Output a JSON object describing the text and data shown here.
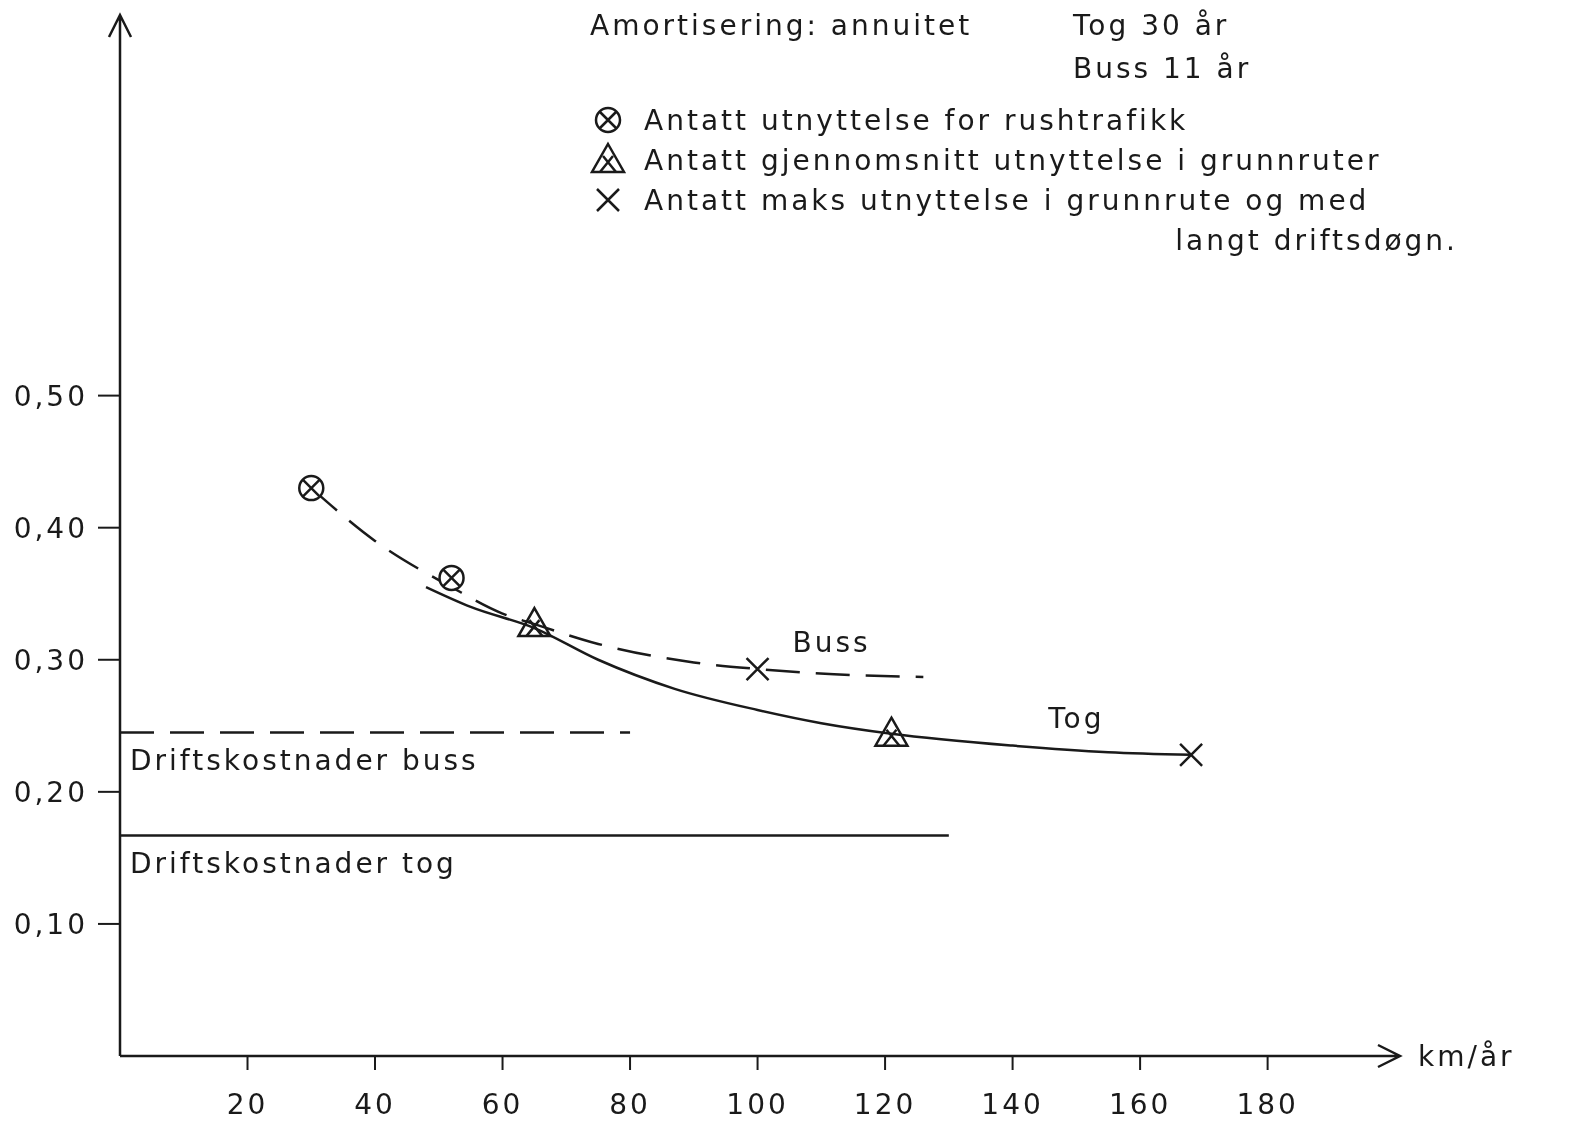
{
  "chart_data": {
    "type": "line",
    "xlabel": "km/år",
    "xlim": [
      0,
      197
    ],
    "ylim": [
      0,
      0.77
    ],
    "xticks": [
      20,
      40,
      60,
      80,
      100,
      120,
      140,
      160,
      180
    ],
    "yticks": [
      {
        "value": 0.1,
        "label": "0,10"
      },
      {
        "value": 0.2,
        "label": "0,20"
      },
      {
        "value": 0.3,
        "label": "0,30"
      },
      {
        "value": 0.4,
        "label": "0,40"
      },
      {
        "value": 0.5,
        "label": "0,50"
      }
    ],
    "annotations": [
      "Amortisering: annuitet",
      "Tog  30 år",
      "Buss 11 år"
    ],
    "legend": "top right",
    "grid": false,
    "series": [
      {
        "name": "Buss",
        "line_style": "dashed",
        "marker": "none",
        "color": "#1a1a1a",
        "x": [
          30,
          40,
          52,
          60,
          65,
          75,
          90,
          100,
          112,
          126
        ],
        "values": [
          0.43,
          0.39,
          0.355,
          0.335,
          0.327,
          0.312,
          0.298,
          0.293,
          0.289,
          0.287
        ]
      },
      {
        "name": "Tog",
        "line_style": "solid",
        "marker": "none",
        "color": "#1a1a1a",
        "x": [
          48,
          55,
          65,
          75,
          87,
          100,
          110,
          121,
          140,
          155,
          168
        ],
        "values": [
          0.355,
          0.34,
          0.324,
          0.3,
          0.278,
          0.262,
          0.252,
          0.244,
          0.235,
          0.23,
          0.228
        ]
      },
      {
        "name": "Driftskostnader buss",
        "line_style": "dashed",
        "marker": "none",
        "color": "#1a1a1a",
        "x": [
          0,
          80
        ],
        "values": [
          0.245,
          0.245
        ]
      },
      {
        "name": "Driftskostnader tog",
        "line_style": "solid",
        "marker": "none",
        "color": "#1a1a1a",
        "x": [
          0,
          130
        ],
        "values": [
          0.167,
          0.167
        ]
      },
      {
        "name": "Antatt utnyttelse for rushtrafikk",
        "type": "scatter",
        "marker": "circle",
        "color": "#1a1a1a",
        "x": [
          30,
          52
        ],
        "values": [
          0.43,
          0.362
        ]
      },
      {
        "name": "Antatt gjennomsnitt utnyttelse i grunnruter",
        "type": "scatter",
        "marker": "triangle",
        "color": "#1a1a1a",
        "x": [
          65,
          121
        ],
        "values": [
          0.327,
          0.244
        ]
      },
      {
        "name": "Antatt maks utnyttelse i grunnrute og med langt driftsdøgn.",
        "type": "scatter",
        "marker": "cross",
        "color": "#1a1a1a",
        "x": [
          100,
          168
        ],
        "values": [
          0.293,
          0.228
        ]
      }
    ]
  }
}
